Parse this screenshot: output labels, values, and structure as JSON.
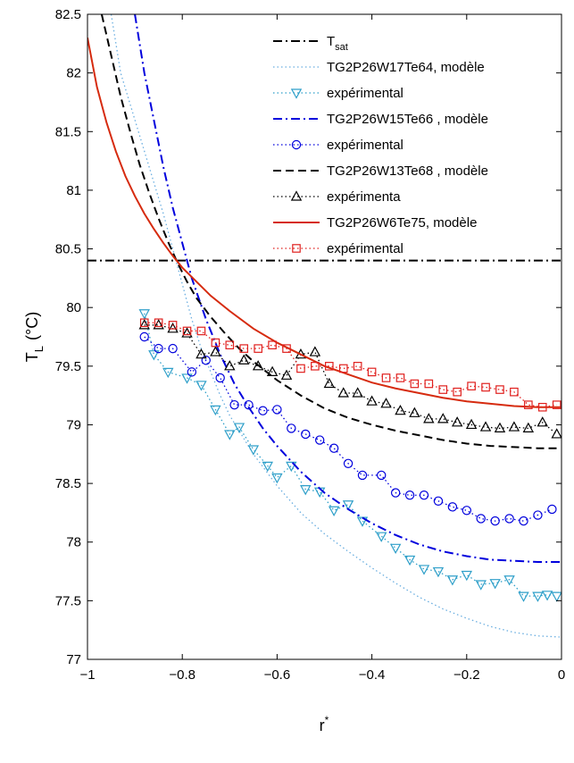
{
  "chart_data": {
    "type": "line",
    "xlabel": "r",
    "xlabel_sup": "*",
    "ylabel": "T",
    "ylabel_sub": "L",
    "ylabel_unit": "(°C)",
    "xlim": [
      -1,
      0
    ],
    "ylim": [
      77,
      82.5
    ],
    "x_ticks": [
      -1,
      -0.8,
      -0.6,
      -0.4,
      -0.2,
      0
    ],
    "x_tick_labels": [
      "−1",
      "−0.8",
      "−0.6",
      "−0.4",
      "−0.2",
      "0"
    ],
    "y_ticks": [
      77,
      77.5,
      78,
      78.5,
      79,
      79.5,
      80,
      80.5,
      81,
      81.5,
      82,
      82.5
    ],
    "y_tick_labels": [
      "77",
      "77.5",
      "78",
      "78.5",
      "79",
      "79.5",
      "80",
      "80.5",
      "81",
      "81.5",
      "82",
      "82.5"
    ],
    "grid": false,
    "legend_position": "top-right",
    "series": [
      {
        "name": "T",
        "name_sub": "sat",
        "style": "dashdot",
        "color": "#000000",
        "marker": "none",
        "x": [
          -1,
          0
        ],
        "y": [
          80.4,
          80.4
        ]
      },
      {
        "name": "TG2P26W17Te64, modèle",
        "style": "dotted",
        "color": "#6aaee0",
        "marker": "none",
        "x": [
          -0.95,
          -0.93,
          -0.9,
          -0.87,
          -0.84,
          -0.82,
          -0.8,
          -0.78,
          -0.76,
          -0.74,
          -0.72,
          -0.7,
          -0.65,
          -0.6,
          -0.55,
          -0.5,
          -0.45,
          -0.4,
          -0.35,
          -0.3,
          -0.25,
          -0.2,
          -0.15,
          -0.1,
          -0.05,
          0
        ],
        "y": [
          82.5,
          82.0,
          81.6,
          81.2,
          80.8,
          80.5,
          80.2,
          79.9,
          79.65,
          79.45,
          79.25,
          79.08,
          78.75,
          78.48,
          78.25,
          78.07,
          77.92,
          77.78,
          77.65,
          77.53,
          77.43,
          77.35,
          77.28,
          77.23,
          77.2,
          77.19
        ]
      },
      {
        "name": "expérimental",
        "style": "dotted",
        "color": "#2e9fc9",
        "marker": "triangle-down",
        "x": [
          -0.88,
          -0.86,
          -0.83,
          -0.79,
          -0.76,
          -0.73,
          -0.7,
          -0.68,
          -0.65,
          -0.62,
          -0.6,
          -0.57,
          -0.54,
          -0.51,
          -0.48,
          -0.45,
          -0.42,
          -0.38,
          -0.35,
          -0.32,
          -0.29,
          -0.26,
          -0.23,
          -0.2,
          -0.17,
          -0.14,
          -0.11,
          -0.08,
          -0.05,
          -0.03,
          -0.01
        ],
        "y": [
          79.95,
          79.6,
          79.45,
          79.4,
          79.34,
          79.13,
          78.92,
          78.98,
          78.79,
          78.65,
          78.55,
          78.65,
          78.45,
          78.43,
          78.27,
          78.32,
          78.18,
          78.05,
          77.95,
          77.85,
          77.77,
          77.75,
          77.68,
          77.72,
          77.64,
          77.65,
          77.68,
          77.54,
          77.54,
          77.55,
          77.54
        ]
      },
      {
        "name": "TG2P26W15Te66 , modèle",
        "style": "dashdot",
        "color": "#0000dd",
        "marker": "none",
        "x": [
          -0.9,
          -0.88,
          -0.86,
          -0.84,
          -0.82,
          -0.8,
          -0.78,
          -0.75,
          -0.72,
          -0.69,
          -0.66,
          -0.63,
          -0.6,
          -0.55,
          -0.5,
          -0.45,
          -0.4,
          -0.35,
          -0.3,
          -0.25,
          -0.2,
          -0.15,
          -0.1,
          -0.05,
          0
        ],
        "y": [
          82.5,
          82.0,
          81.6,
          81.2,
          80.85,
          80.55,
          80.25,
          79.9,
          79.6,
          79.35,
          79.15,
          78.97,
          78.82,
          78.6,
          78.42,
          78.28,
          78.16,
          78.06,
          77.98,
          77.92,
          77.88,
          77.85,
          77.84,
          77.83,
          77.83
        ]
      },
      {
        "name": " expérimental",
        "style": "dotted",
        "color": "#0000dd",
        "marker": "circle",
        "x": [
          -0.88,
          -0.85,
          -0.82,
          -0.78,
          -0.75,
          -0.72,
          -0.69,
          -0.66,
          -0.63,
          -0.6,
          -0.57,
          -0.54,
          -0.51,
          -0.48,
          -0.45,
          -0.42,
          -0.38,
          -0.35,
          -0.32,
          -0.29,
          -0.26,
          -0.23,
          -0.2,
          -0.17,
          -0.14,
          -0.11,
          -0.08,
          -0.05,
          -0.02
        ],
        "y": [
          79.75,
          79.65,
          79.65,
          79.45,
          79.55,
          79.4,
          79.17,
          79.17,
          79.12,
          79.13,
          78.97,
          78.92,
          78.87,
          78.8,
          78.67,
          78.57,
          78.57,
          78.42,
          78.4,
          78.4,
          78.35,
          78.3,
          78.27,
          78.2,
          78.18,
          78.2,
          78.18,
          78.23,
          78.28
        ]
      },
      {
        "name": "TG2P26W13Te68 , modèle",
        "style": "dashed",
        "color": "#000000",
        "marker": "none",
        "x": [
          -0.97,
          -0.95,
          -0.93,
          -0.91,
          -0.89,
          -0.87,
          -0.85,
          -0.83,
          -0.81,
          -0.79,
          -0.77,
          -0.74,
          -0.71,
          -0.68,
          -0.65,
          -0.6,
          -0.55,
          -0.5,
          -0.45,
          -0.4,
          -0.35,
          -0.3,
          -0.25,
          -0.2,
          -0.15,
          -0.1,
          -0.05,
          0
        ],
        "y": [
          82.5,
          82.15,
          81.8,
          81.5,
          81.22,
          80.98,
          80.76,
          80.56,
          80.38,
          80.22,
          80.08,
          79.92,
          79.78,
          79.65,
          79.54,
          79.38,
          79.25,
          79.14,
          79.06,
          79.0,
          78.95,
          78.91,
          78.87,
          78.84,
          78.82,
          78.81,
          78.8,
          78.8
        ]
      },
      {
        "name": "expérimenta",
        "style": "dotted",
        "color": "#000000",
        "marker": "triangle-up",
        "x": [
          -0.88,
          -0.85,
          -0.82,
          -0.79,
          -0.76,
          -0.73,
          -0.7,
          -0.67,
          -0.64,
          -0.61,
          -0.58,
          -0.55,
          -0.52,
          -0.49,
          -0.46,
          -0.43,
          -0.4,
          -0.37,
          -0.34,
          -0.31,
          -0.28,
          -0.25,
          -0.22,
          -0.19,
          -0.16,
          -0.13,
          -0.1,
          -0.07,
          -0.04,
          -0.01
        ],
        "y": [
          79.85,
          79.85,
          79.82,
          79.78,
          79.6,
          79.62,
          79.5,
          79.55,
          79.5,
          79.45,
          79.42,
          79.6,
          79.62,
          79.35,
          79.27,
          79.27,
          79.2,
          79.18,
          79.12,
          79.1,
          79.05,
          79.05,
          79.02,
          79.0,
          78.98,
          78.97,
          78.98,
          78.97,
          79.02,
          78.92
        ]
      },
      {
        "name": "TG2P26W6Te75,  modèle",
        "style": "solid",
        "color": "#d62b0f",
        "marker": "none",
        "x": [
          -1.0,
          -0.98,
          -0.96,
          -0.94,
          -0.92,
          -0.9,
          -0.88,
          -0.86,
          -0.84,
          -0.82,
          -0.8,
          -0.77,
          -0.74,
          -0.7,
          -0.65,
          -0.6,
          -0.55,
          -0.5,
          -0.45,
          -0.4,
          -0.35,
          -0.3,
          -0.25,
          -0.2,
          -0.15,
          -0.1,
          -0.05,
          0
        ],
        "y": [
          82.3,
          81.88,
          81.58,
          81.33,
          81.12,
          80.95,
          80.8,
          80.67,
          80.55,
          80.44,
          80.34,
          80.22,
          80.1,
          79.97,
          79.82,
          79.7,
          79.6,
          79.5,
          79.43,
          79.36,
          79.31,
          79.27,
          79.23,
          79.2,
          79.18,
          79.16,
          79.15,
          79.15
        ]
      },
      {
        "name": "expérimental",
        "style": "dotted",
        "color": "#e0201e",
        "marker": "square",
        "x": [
          -0.88,
          -0.85,
          -0.82,
          -0.79,
          -0.76,
          -0.73,
          -0.7,
          -0.67,
          -0.64,
          -0.61,
          -0.58,
          -0.55,
          -0.52,
          -0.49,
          -0.46,
          -0.43,
          -0.4,
          -0.37,
          -0.34,
          -0.31,
          -0.28,
          -0.25,
          -0.22,
          -0.19,
          -0.16,
          -0.13,
          -0.1,
          -0.07,
          -0.04,
          -0.01
        ],
        "y": [
          79.87,
          79.87,
          79.85,
          79.8,
          79.8,
          79.7,
          79.68,
          79.65,
          79.65,
          79.68,
          79.65,
          79.48,
          79.5,
          79.5,
          79.48,
          79.5,
          79.45,
          79.4,
          79.4,
          79.35,
          79.35,
          79.3,
          79.28,
          79.33,
          79.32,
          79.3,
          79.28,
          79.17,
          79.15,
          79.17
        ]
      }
    ]
  }
}
